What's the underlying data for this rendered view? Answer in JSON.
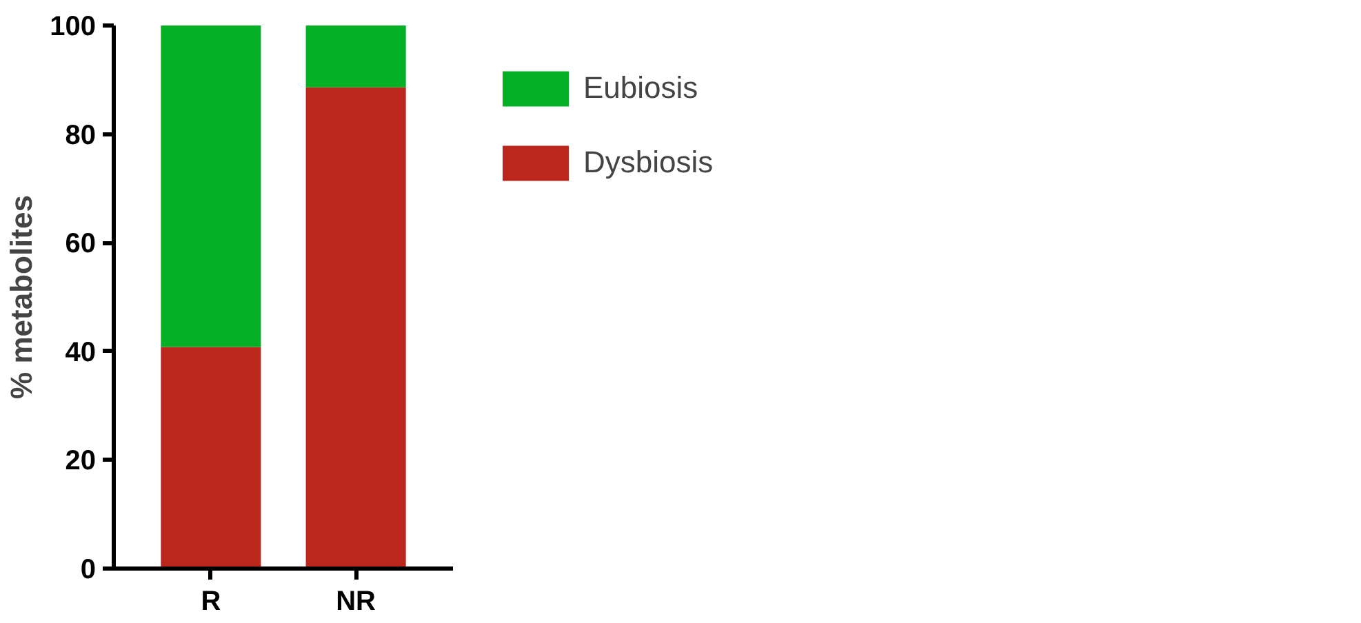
{
  "chart_data": {
    "type": "bar",
    "stacked": true,
    "ylabel": "% metabolites",
    "categories": [
      "R",
      "NR"
    ],
    "series": [
      {
        "name": "Dysbiosis",
        "color": "#bb271d",
        "values": [
          40.8,
          88.6
        ]
      },
      {
        "name": "Eubiosis",
        "color": "#02b026",
        "values": [
          59.2,
          11.4
        ]
      }
    ],
    "ylim": [
      0,
      100
    ],
    "yticks": [
      0,
      20,
      40,
      60,
      80,
      100
    ],
    "grid": false,
    "legend": "right"
  }
}
